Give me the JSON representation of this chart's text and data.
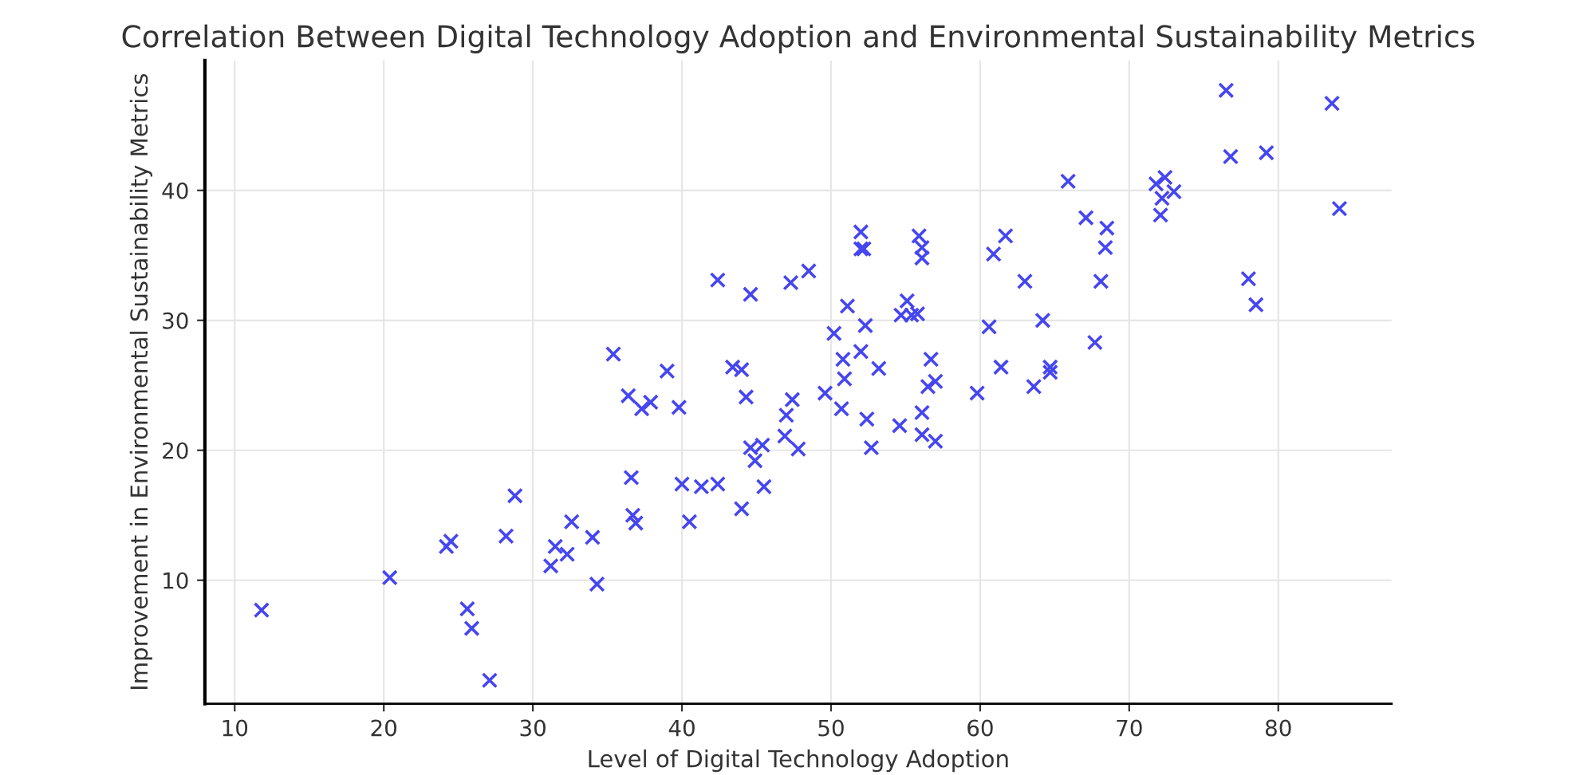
{
  "chart_data": {
    "type": "scatter",
    "title": "Correlation Between Digital Technology Adoption and Environmental Sustainability Metrics",
    "xlabel": "Level of Digital Technology Adoption",
    "ylabel": "Improvement in Environmental Sustainability Metrics",
    "marker": "cross",
    "grid": true,
    "xlim": [
      8,
      87.6
    ],
    "ylim": [
      0.5,
      50
    ],
    "xticks": [
      10,
      20,
      30,
      40,
      50,
      60,
      70,
      80
    ],
    "yticks": [
      10,
      20,
      30,
      40
    ],
    "series": [
      {
        "color": "#4646f0",
        "x": [
          11.8,
          20.4,
          24.2,
          24.5,
          25.6,
          25.9,
          27.1,
          28.2,
          28.8,
          31.2,
          31.5,
          32.3,
          32.6,
          34.0,
          34.3,
          35.4,
          36.4,
          36.6,
          36.7,
          36.9,
          37.3,
          37.9,
          39.0,
          39.8,
          40.0,
          40.5,
          41.3,
          42.4,
          42.4,
          43.4,
          44.0,
          44.3,
          44.0,
          44.6,
          44.6,
          44.9,
          45.4,
          45.5,
          46.9,
          47.0,
          47.4,
          47.3,
          47.8,
          48.5,
          49.6,
          50.2,
          50.7,
          50.8,
          50.9,
          51.1,
          52.0,
          52.0,
          52.2,
          52.0,
          52.3,
          52.4,
          52.7,
          53.2,
          54.6,
          54.7,
          55.1,
          55.4,
          55.8,
          55.9,
          56.1,
          56.1,
          56.1,
          56.1,
          56.7,
          56.5,
          57.0,
          57.0,
          59.8,
          60.6,
          60.9,
          61.4,
          61.7,
          63.0,
          63.6,
          64.2,
          64.7,
          64.7,
          65.9,
          67.1,
          67.7,
          68.1,
          68.4,
          68.5,
          71.8,
          72.4,
          72.2,
          72.1,
          73.0,
          76.5,
          76.8,
          79.2,
          78.0,
          78.5,
          83.6,
          84.1
        ],
        "values": [
          7.7,
          10.2,
          12.6,
          13.0,
          7.8,
          6.3,
          2.3,
          13.4,
          16.5,
          11.1,
          12.6,
          12.0,
          14.5,
          13.3,
          9.7,
          27.4,
          24.2,
          17.9,
          15.0,
          14.4,
          23.2,
          23.7,
          26.1,
          23.3,
          17.4,
          14.5,
          17.2,
          17.4,
          33.1,
          26.4,
          26.2,
          24.1,
          15.5,
          32.0,
          20.2,
          19.2,
          20.4,
          17.2,
          21.1,
          22.7,
          23.9,
          32.9,
          20.1,
          33.8,
          24.4,
          29.0,
          23.2,
          27.0,
          25.5,
          31.1,
          36.8,
          35.5,
          35.5,
          27.6,
          29.6,
          22.4,
          20.2,
          26.3,
          21.9,
          30.4,
          31.5,
          30.4,
          30.5,
          36.5,
          35.6,
          34.8,
          22.9,
          21.2,
          27.0,
          24.9,
          25.3,
          20.7,
          24.4,
          29.5,
          35.1,
          26.4,
          36.5,
          33.0,
          24.9,
          30.0,
          26.4,
          26.0,
          40.7,
          37.9,
          28.3,
          33.0,
          35.6,
          37.1,
          40.5,
          41.0,
          39.4,
          38.1,
          39.9,
          47.7,
          42.6,
          42.9,
          33.2,
          31.2,
          46.7,
          38.6
        ]
      }
    ]
  }
}
